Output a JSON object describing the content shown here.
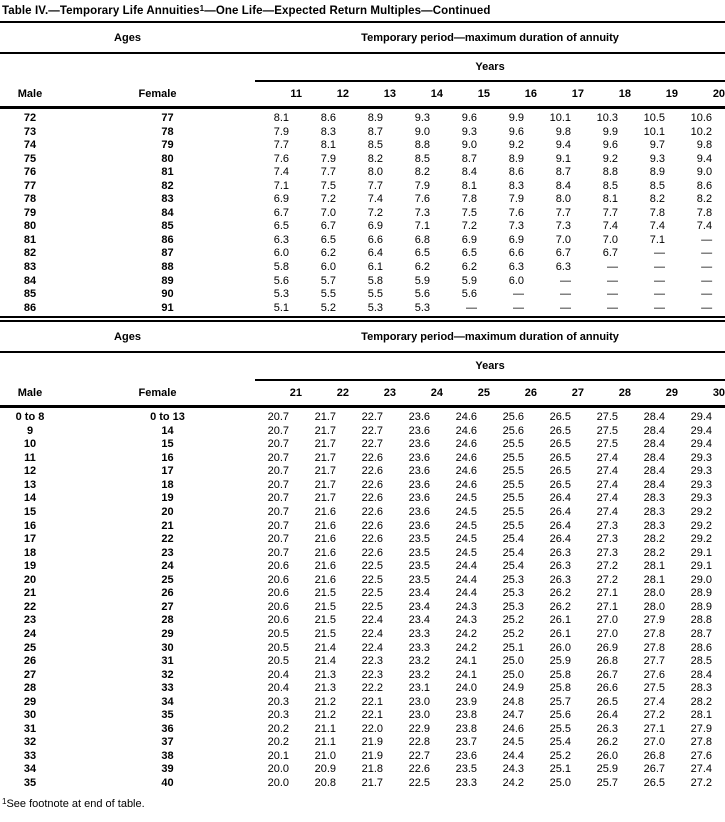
{
  "title": {
    "prefix": "Table IV.—Temporary Life Annuities",
    "footnote_marker": "1",
    "suffix": "—One Life—Expected Return Multiples—Continued"
  },
  "footnote": {
    "marker": "1",
    "text": "See footnote at end of table."
  },
  "tables": [
    {
      "ages_header": "Ages",
      "period_header": "Temporary period—maximum duration of annuity",
      "years_header": "Years",
      "male_header": "Male",
      "female_header": "Female",
      "year_columns": [
        "11",
        "12",
        "13",
        "14",
        "15",
        "16",
        "17",
        "18",
        "19",
        "20"
      ],
      "rows": [
        {
          "male": "72",
          "female": "77",
          "values": [
            "8.1",
            "8.6",
            "8.9",
            "9.3",
            "9.6",
            "9.9",
            "10.1",
            "10.3",
            "10.5",
            "10.6"
          ]
        },
        {
          "male": "73",
          "female": "78",
          "values": [
            "7.9",
            "8.3",
            "8.7",
            "9.0",
            "9.3",
            "9.6",
            "9.8",
            "9.9",
            "10.1",
            "10.2"
          ]
        },
        {
          "male": "74",
          "female": "79",
          "values": [
            "7.7",
            "8.1",
            "8.5",
            "8.8",
            "9.0",
            "9.2",
            "9.4",
            "9.6",
            "9.7",
            "9.8"
          ]
        },
        {
          "male": "75",
          "female": "80",
          "values": [
            "7.6",
            "7.9",
            "8.2",
            "8.5",
            "8.7",
            "8.9",
            "9.1",
            "9.2",
            "9.3",
            "9.4"
          ]
        },
        {
          "male": "76",
          "female": "81",
          "values": [
            "7.4",
            "7.7",
            "8.0",
            "8.2",
            "8.4",
            "8.6",
            "8.7",
            "8.8",
            "8.9",
            "9.0"
          ]
        },
        {
          "male": "77",
          "female": "82",
          "values": [
            "7.1",
            "7.5",
            "7.7",
            "7.9",
            "8.1",
            "8.3",
            "8.4",
            "8.5",
            "8.5",
            "8.6"
          ]
        },
        {
          "male": "78",
          "female": "83",
          "values": [
            "6.9",
            "7.2",
            "7.4",
            "7.6",
            "7.8",
            "7.9",
            "8.0",
            "8.1",
            "8.2",
            "8.2"
          ]
        },
        {
          "male": "79",
          "female": "84",
          "values": [
            "6.7",
            "7.0",
            "7.2",
            "7.3",
            "7.5",
            "7.6",
            "7.7",
            "7.7",
            "7.8",
            "7.8"
          ]
        },
        {
          "male": "80",
          "female": "85",
          "values": [
            "6.5",
            "6.7",
            "6.9",
            "7.1",
            "7.2",
            "7.3",
            "7.3",
            "7.4",
            "7.4",
            "7.4"
          ]
        },
        {
          "male": "81",
          "female": "86",
          "values": [
            "6.3",
            "6.5",
            "6.6",
            "6.8",
            "6.9",
            "6.9",
            "7.0",
            "7.0",
            "7.1",
            "—"
          ]
        },
        {
          "male": "82",
          "female": "87",
          "values": [
            "6.0",
            "6.2",
            "6.4",
            "6.5",
            "6.5",
            "6.6",
            "6.7",
            "6.7",
            "—",
            "—"
          ]
        },
        {
          "male": "83",
          "female": "88",
          "values": [
            "5.8",
            "6.0",
            "6.1",
            "6.2",
            "6.2",
            "6.3",
            "6.3",
            "—",
            "—",
            "—"
          ]
        },
        {
          "male": "84",
          "female": "89",
          "values": [
            "5.6",
            "5.7",
            "5.8",
            "5.9",
            "5.9",
            "6.0",
            "—",
            "—",
            "—",
            "—"
          ]
        },
        {
          "male": "85",
          "female": "90",
          "values": [
            "5.3",
            "5.5",
            "5.5",
            "5.6",
            "5.6",
            "—",
            "—",
            "—",
            "—",
            "—"
          ]
        },
        {
          "male": "86",
          "female": "91",
          "values": [
            "5.1",
            "5.2",
            "5.3",
            "5.3",
            "—",
            "—",
            "—",
            "—",
            "—",
            "—"
          ]
        }
      ]
    },
    {
      "ages_header": "Ages",
      "period_header": "Temporary period—maximum duration of annuity",
      "years_header": "Years",
      "male_header": "Male",
      "female_header": "Female",
      "year_columns": [
        "21",
        "22",
        "23",
        "24",
        "25",
        "26",
        "27",
        "28",
        "29",
        "30"
      ],
      "rows": [
        {
          "male": "0 to 8",
          "female": "0 to 13",
          "values": [
            "20.7",
            "21.7",
            "22.7",
            "23.6",
            "24.6",
            "25.6",
            "26.5",
            "27.5",
            "28.4",
            "29.4"
          ]
        },
        {
          "male": "9",
          "female": "14",
          "values": [
            "20.7",
            "21.7",
            "22.7",
            "23.6",
            "24.6",
            "25.6",
            "26.5",
            "27.5",
            "28.4",
            "29.4"
          ]
        },
        {
          "male": "10",
          "female": "15",
          "values": [
            "20.7",
            "21.7",
            "22.7",
            "23.6",
            "24.6",
            "25.5",
            "26.5",
            "27.5",
            "28.4",
            "29.4"
          ]
        },
        {
          "male": "11",
          "female": "16",
          "values": [
            "20.7",
            "21.7",
            "22.6",
            "23.6",
            "24.6",
            "25.5",
            "26.5",
            "27.4",
            "28.4",
            "29.3"
          ]
        },
        {
          "male": "12",
          "female": "17",
          "values": [
            "20.7",
            "21.7",
            "22.6",
            "23.6",
            "24.6",
            "25.5",
            "26.5",
            "27.4",
            "28.4",
            "29.3"
          ]
        },
        {
          "male": "13",
          "female": "18",
          "values": [
            "20.7",
            "21.7",
            "22.6",
            "23.6",
            "24.6",
            "25.5",
            "26.5",
            "27.4",
            "28.4",
            "29.3"
          ]
        },
        {
          "male": "14",
          "female": "19",
          "values": [
            "20.7",
            "21.7",
            "22.6",
            "23.6",
            "24.5",
            "25.5",
            "26.4",
            "27.4",
            "28.3",
            "29.3"
          ]
        },
        {
          "male": "15",
          "female": "20",
          "values": [
            "20.7",
            "21.6",
            "22.6",
            "23.6",
            "24.5",
            "25.5",
            "26.4",
            "27.4",
            "28.3",
            "29.2"
          ]
        },
        {
          "male": "16",
          "female": "21",
          "values": [
            "20.7",
            "21.6",
            "22.6",
            "23.6",
            "24.5",
            "25.5",
            "26.4",
            "27.3",
            "28.3",
            "29.2"
          ]
        },
        {
          "male": "17",
          "female": "22",
          "values": [
            "20.7",
            "21.6",
            "22.6",
            "23.5",
            "24.5",
            "25.4",
            "26.4",
            "27.3",
            "28.2",
            "29.2"
          ]
        },
        {
          "male": "18",
          "female": "23",
          "values": [
            "20.7",
            "21.6",
            "22.6",
            "23.5",
            "24.5",
            "25.4",
            "26.3",
            "27.3",
            "28.2",
            "29.1"
          ]
        },
        {
          "male": "19",
          "female": "24",
          "values": [
            "20.6",
            "21.6",
            "22.5",
            "23.5",
            "24.4",
            "25.4",
            "26.3",
            "27.2",
            "28.1",
            "29.1"
          ]
        },
        {
          "male": "20",
          "female": "25",
          "values": [
            "20.6",
            "21.6",
            "22.5",
            "23.5",
            "24.4",
            "25.3",
            "26.3",
            "27.2",
            "28.1",
            "29.0"
          ]
        },
        {
          "male": "21",
          "female": "26",
          "values": [
            "20.6",
            "21.5",
            "22.5",
            "23.4",
            "24.4",
            "25.3",
            "26.2",
            "27.1",
            "28.0",
            "28.9"
          ]
        },
        {
          "male": "22",
          "female": "27",
          "values": [
            "20.6",
            "21.5",
            "22.5",
            "23.4",
            "24.3",
            "25.3",
            "26.2",
            "27.1",
            "28.0",
            "28.9"
          ]
        },
        {
          "male": "23",
          "female": "28",
          "values": [
            "20.6",
            "21.5",
            "22.4",
            "23.4",
            "24.3",
            "25.2",
            "26.1",
            "27.0",
            "27.9",
            "28.8"
          ]
        },
        {
          "male": "24",
          "female": "29",
          "values": [
            "20.5",
            "21.5",
            "22.4",
            "23.3",
            "24.2",
            "25.2",
            "26.1",
            "27.0",
            "27.8",
            "28.7"
          ]
        },
        {
          "male": "25",
          "female": "30",
          "values": [
            "20.5",
            "21.4",
            "22.4",
            "23.3",
            "24.2",
            "25.1",
            "26.0",
            "26.9",
            "27.8",
            "28.6"
          ]
        },
        {
          "male": "26",
          "female": "31",
          "values": [
            "20.5",
            "21.4",
            "22.3",
            "23.2",
            "24.1",
            "25.0",
            "25.9",
            "26.8",
            "27.7",
            "28.5"
          ]
        },
        {
          "male": "27",
          "female": "32",
          "values": [
            "20.4",
            "21.3",
            "22.3",
            "23.2",
            "24.1",
            "25.0",
            "25.8",
            "26.7",
            "27.6",
            "28.4"
          ]
        },
        {
          "male": "28",
          "female": "33",
          "values": [
            "20.4",
            "21.3",
            "22.2",
            "23.1",
            "24.0",
            "24.9",
            "25.8",
            "26.6",
            "27.5",
            "28.3"
          ]
        },
        {
          "male": "29",
          "female": "34",
          "values": [
            "20.3",
            "21.2",
            "22.1",
            "23.0",
            "23.9",
            "24.8",
            "25.7",
            "26.5",
            "27.4",
            "28.2"
          ]
        },
        {
          "male": "30",
          "female": "35",
          "values": [
            "20.3",
            "21.2",
            "22.1",
            "23.0",
            "23.8",
            "24.7",
            "25.6",
            "26.4",
            "27.2",
            "28.1"
          ]
        },
        {
          "male": "31",
          "female": "36",
          "values": [
            "20.2",
            "21.1",
            "22.0",
            "22.9",
            "23.8",
            "24.6",
            "25.5",
            "26.3",
            "27.1",
            "27.9"
          ]
        },
        {
          "male": "32",
          "female": "37",
          "values": [
            "20.2",
            "21.1",
            "21.9",
            "22.8",
            "23.7",
            "24.5",
            "25.4",
            "26.2",
            "27.0",
            "27.8"
          ]
        },
        {
          "male": "33",
          "female": "38",
          "values": [
            "20.1",
            "21.0",
            "21.9",
            "22.7",
            "23.6",
            "24.4",
            "25.2",
            "26.0",
            "26.8",
            "27.6"
          ]
        },
        {
          "male": "34",
          "female": "39",
          "values": [
            "20.0",
            "20.9",
            "21.8",
            "22.6",
            "23.5",
            "24.3",
            "25.1",
            "25.9",
            "26.7",
            "27.4"
          ]
        },
        {
          "male": "35",
          "female": "40",
          "values": [
            "20.0",
            "20.8",
            "21.7",
            "22.5",
            "23.3",
            "24.2",
            "25.0",
            "25.7",
            "26.5",
            "27.2"
          ]
        }
      ]
    }
  ]
}
